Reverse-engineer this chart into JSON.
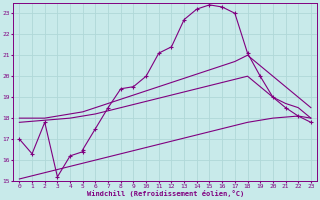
{
  "title": "",
  "xlabel": "Windchill (Refroidissement éolien,°C)",
  "ylabel": "",
  "bg_color": "#c8eaea",
  "line_color": "#800080",
  "grid_color": "#b0d8d8",
  "xlim": [
    -0.5,
    23.5
  ],
  "ylim": [
    15,
    23.5
  ],
  "xticks": [
    0,
    1,
    2,
    3,
    4,
    5,
    6,
    7,
    8,
    9,
    10,
    11,
    12,
    13,
    14,
    15,
    16,
    17,
    18,
    19,
    20,
    21,
    22,
    23
  ],
  "yticks": [
    15,
    16,
    17,
    18,
    19,
    20,
    21,
    22,
    23
  ],
  "series": [
    {
      "x": [
        0,
        1,
        2,
        3,
        4,
        5,
        5,
        6,
        7,
        8,
        9,
        10,
        11,
        12,
        13,
        14,
        15,
        16,
        17,
        18,
        19,
        20,
        21,
        22,
        23
      ],
      "y": [
        17.0,
        16.3,
        17.8,
        15.2,
        16.2,
        16.4,
        16.5,
        17.5,
        18.5,
        19.4,
        19.5,
        20.0,
        21.1,
        21.4,
        22.7,
        23.2,
        23.4,
        23.3,
        23.0,
        21.1,
        20.0,
        19.0,
        18.5,
        18.1,
        17.8
      ],
      "has_markers": true
    },
    {
      "x": [
        0,
        1,
        2,
        3,
        4,
        5,
        6,
        7,
        8,
        9,
        10,
        11,
        12,
        13,
        14,
        15,
        16,
        17,
        18,
        19,
        20,
        21,
        22,
        23
      ],
      "y": [
        18.0,
        18.0,
        18.0,
        18.1,
        18.2,
        18.3,
        18.5,
        18.7,
        18.9,
        19.1,
        19.3,
        19.5,
        19.7,
        19.9,
        20.1,
        20.3,
        20.5,
        20.7,
        21.0,
        20.5,
        20.0,
        19.5,
        19.0,
        18.5
      ],
      "has_markers": false
    },
    {
      "x": [
        0,
        1,
        2,
        3,
        4,
        5,
        6,
        7,
        8,
        9,
        10,
        11,
        12,
        13,
        14,
        15,
        16,
        17,
        18,
        19,
        20,
        21,
        22,
        23
      ],
      "y": [
        17.8,
        17.85,
        17.9,
        17.95,
        18.0,
        18.1,
        18.2,
        18.35,
        18.5,
        18.65,
        18.8,
        18.95,
        19.1,
        19.25,
        19.4,
        19.55,
        19.7,
        19.85,
        20.0,
        19.5,
        19.0,
        18.7,
        18.5,
        18.0
      ],
      "has_markers": false
    },
    {
      "x": [
        0,
        1,
        2,
        3,
        4,
        5,
        6,
        7,
        8,
        9,
        10,
        11,
        12,
        13,
        14,
        15,
        16,
        17,
        18,
        19,
        20,
        21,
        22,
        23
      ],
      "y": [
        15.1,
        15.25,
        15.4,
        15.55,
        15.7,
        15.85,
        16.0,
        16.15,
        16.3,
        16.45,
        16.6,
        16.75,
        16.9,
        17.05,
        17.2,
        17.35,
        17.5,
        17.65,
        17.8,
        17.9,
        18.0,
        18.05,
        18.1,
        18.0
      ],
      "has_markers": false
    }
  ],
  "figsize": [
    3.2,
    2.0
  ],
  "dpi": 100
}
